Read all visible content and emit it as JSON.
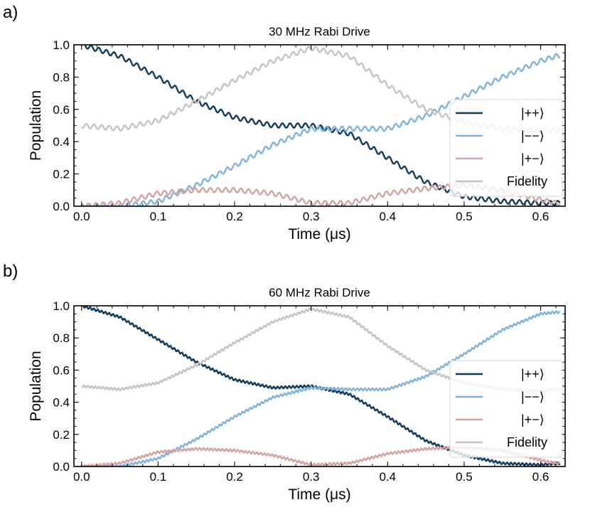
{
  "panels": [
    {
      "label": "a)"
    },
    {
      "label": "b)"
    }
  ],
  "colors": {
    "pp": "#0f3b5f",
    "mm": "#7fb2dc",
    "pm": "#d4a3a1",
    "fidelity": "#c4c4c4"
  },
  "chart_data": [
    {
      "type": "line",
      "title": "30 MHz Rabi Drive",
      "xlabel": "Time (μs)",
      "ylabel": "Population",
      "xlim": [
        -0.01,
        0.632
      ],
      "ylim": [
        0.0,
        1.0
      ],
      "xticks": [
        "0.0",
        "0.1",
        "0.2",
        "0.3",
        "0.4",
        "0.5",
        "0.6"
      ],
      "yticks": [
        "0.0",
        "0.2",
        "0.4",
        "0.6",
        "0.8",
        "1.0"
      ],
      "legend_position": "center-right",
      "ripple_amplitude": 0.014,
      "ripple_frequency_per_us": 100,
      "series": [
        {
          "name": "|++⟩",
          "color_key": "pp",
          "x": [
            0.0,
            0.05,
            0.1,
            0.15,
            0.2,
            0.25,
            0.3,
            0.35,
            0.4,
            0.45,
            0.5,
            0.55,
            0.6,
            0.62
          ],
          "values": [
            1.0,
            0.93,
            0.8,
            0.65,
            0.55,
            0.5,
            0.5,
            0.45,
            0.3,
            0.15,
            0.06,
            0.03,
            0.02,
            0.02
          ]
        },
        {
          "name": "|−−⟩",
          "color_key": "mm",
          "x": [
            0.0,
            0.05,
            0.1,
            0.15,
            0.2,
            0.25,
            0.3,
            0.35,
            0.4,
            0.45,
            0.5,
            0.55,
            0.6,
            0.62
          ],
          "values": [
            0.0,
            0.0,
            0.03,
            0.13,
            0.25,
            0.38,
            0.48,
            0.48,
            0.48,
            0.56,
            0.68,
            0.8,
            0.9,
            0.93
          ]
        },
        {
          "name": "|+−⟩",
          "color_key": "pm",
          "x": [
            0.0,
            0.05,
            0.1,
            0.15,
            0.2,
            0.25,
            0.3,
            0.35,
            0.4,
            0.45,
            0.5,
            0.55,
            0.6,
            0.62
          ],
          "values": [
            0.0,
            0.02,
            0.08,
            0.1,
            0.1,
            0.08,
            0.02,
            0.02,
            0.08,
            0.11,
            0.13,
            0.1,
            0.04,
            0.02
          ]
        },
        {
          "name": "Fidelity",
          "color_key": "fidelity",
          "x": [
            0.0,
            0.05,
            0.1,
            0.15,
            0.2,
            0.25,
            0.3,
            0.35,
            0.4,
            0.45,
            0.5,
            0.55,
            0.6,
            0.62
          ],
          "values": [
            0.5,
            0.48,
            0.53,
            0.65,
            0.78,
            0.9,
            0.98,
            0.93,
            0.75,
            0.6,
            0.52,
            0.48,
            0.47,
            0.47
          ]
        }
      ]
    },
    {
      "type": "line",
      "title": "60 MHz Rabi Drive",
      "xlabel": "Time (μs)",
      "ylabel": "Population",
      "xlim": [
        -0.01,
        0.632
      ],
      "ylim": [
        0.0,
        1.0
      ],
      "xticks": [
        "0.0",
        "0.1",
        "0.2",
        "0.3",
        "0.4",
        "0.5",
        "0.6"
      ],
      "yticks": [
        "0.0",
        "0.2",
        "0.4",
        "0.6",
        "0.8",
        "1.0"
      ],
      "legend_position": "center-right",
      "ripple_amplitude": 0.007,
      "ripple_frequency_per_us": 200,
      "series": [
        {
          "name": "|++⟩",
          "color_key": "pp",
          "x": [
            0.0,
            0.05,
            0.1,
            0.15,
            0.2,
            0.25,
            0.3,
            0.35,
            0.4,
            0.45,
            0.5,
            0.55,
            0.6,
            0.62
          ],
          "values": [
            1.0,
            0.93,
            0.79,
            0.65,
            0.54,
            0.49,
            0.5,
            0.45,
            0.31,
            0.16,
            0.07,
            0.02,
            0.01,
            0.02
          ]
        },
        {
          "name": "|−−⟩",
          "color_key": "mm",
          "x": [
            0.0,
            0.05,
            0.1,
            0.15,
            0.2,
            0.25,
            0.3,
            0.35,
            0.4,
            0.45,
            0.5,
            0.55,
            0.6,
            0.62
          ],
          "values": [
            0.0,
            0.0,
            0.05,
            0.17,
            0.31,
            0.43,
            0.49,
            0.48,
            0.48,
            0.56,
            0.7,
            0.85,
            0.95,
            0.96
          ]
        },
        {
          "name": "|+−⟩",
          "color_key": "pm",
          "x": [
            0.0,
            0.05,
            0.1,
            0.15,
            0.2,
            0.25,
            0.3,
            0.35,
            0.4,
            0.45,
            0.5,
            0.55,
            0.6,
            0.62
          ],
          "values": [
            0.0,
            0.02,
            0.09,
            0.11,
            0.1,
            0.07,
            0.01,
            0.02,
            0.08,
            0.11,
            0.12,
            0.1,
            0.04,
            0.02
          ]
        },
        {
          "name": "Fidelity",
          "color_key": "fidelity",
          "x": [
            0.0,
            0.05,
            0.1,
            0.15,
            0.2,
            0.25,
            0.3,
            0.35,
            0.4,
            0.45,
            0.5,
            0.55,
            0.6,
            0.62
          ],
          "values": [
            0.5,
            0.48,
            0.52,
            0.63,
            0.77,
            0.9,
            0.98,
            0.93,
            0.75,
            0.6,
            0.52,
            0.48,
            0.47,
            0.48
          ]
        }
      ]
    }
  ]
}
